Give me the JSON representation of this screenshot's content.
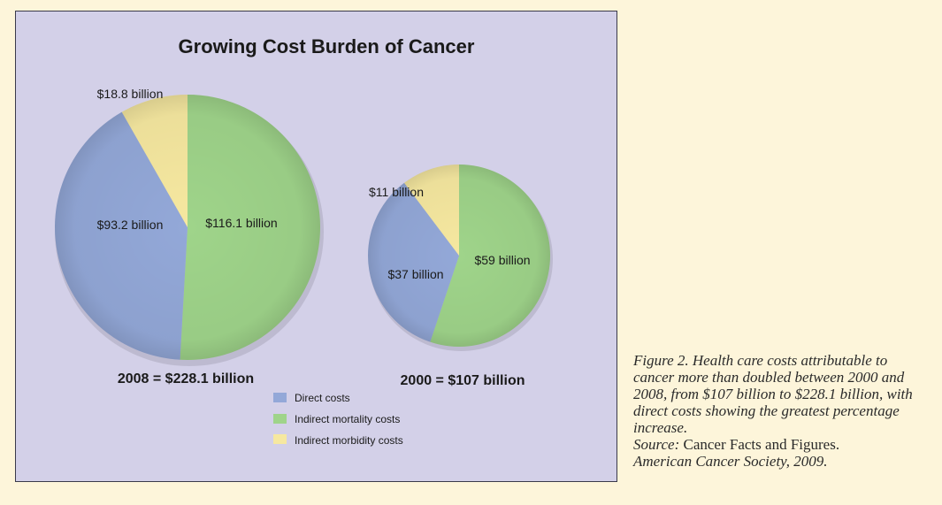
{
  "chart_data": {
    "type": "pie",
    "title": "Growing Cost Burden of Cancer",
    "legend": {
      "placement": "bottom-center",
      "entries": [
        {
          "name": "Direct costs",
          "color": "#93a8d8"
        },
        {
          "name": "Indirect mortality costs",
          "color": "#9fd48a"
        },
        {
          "name": "Indirect morbidity costs",
          "color": "#f6e8a0"
        }
      ]
    },
    "pies": [
      {
        "year": "2008",
        "total_label": "2008 = $228.1 billion",
        "total": 228.1,
        "slices": [
          {
            "category": "Indirect mortality costs",
            "value": 116.1,
            "label": "$116.1 billion",
            "color": "#9fd48a"
          },
          {
            "category": "Direct costs",
            "value": 93.2,
            "label": "$93.2 billion",
            "color": "#93a8d8"
          },
          {
            "category": "Indirect morbidity costs",
            "value": 18.8,
            "label": "$18.8 billion",
            "color": "#f6e8a0"
          }
        ]
      },
      {
        "year": "2000",
        "total_label": "2000 = $107 billion",
        "total": 107,
        "slices": [
          {
            "category": "Indirect mortality costs",
            "value": 59,
            "label": "$59 billion",
            "color": "#9fd48a"
          },
          {
            "category": "Direct costs",
            "value": 37,
            "label": "$37 billion",
            "color": "#93a8d8"
          },
          {
            "category": "Indirect morbidity costs",
            "value": 11,
            "label": "$11 billion",
            "color": "#f6e8a0"
          }
        ]
      }
    ]
  },
  "caption": {
    "figure_text": "Figure 2. Health care costs attributable to cancer more than doubled between 2000 and 2008, from $107 billion to $228.1 billion, with direct costs showing the greatest percentage increase.",
    "source_label": "Source:",
    "source_title": "Cancer Facts and Figures.",
    "source_org": "American Cancer Society, 2009."
  }
}
